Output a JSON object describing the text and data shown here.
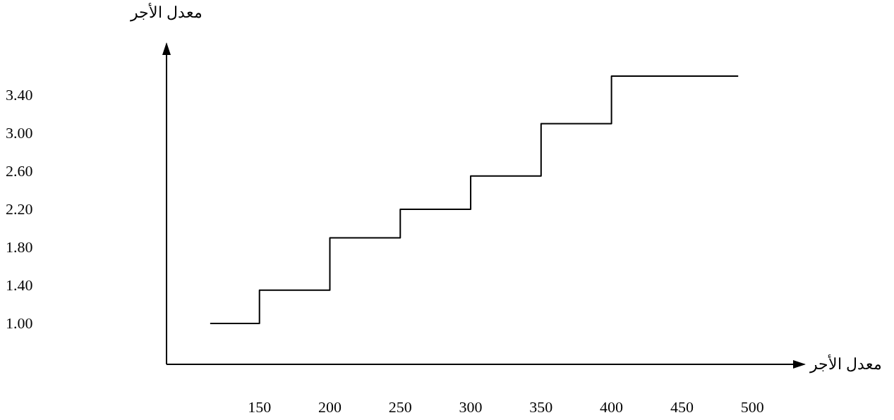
{
  "chart_data": {
    "type": "step",
    "xlabel": "معدل الأجر",
    "ylabel": "معدل الأجر",
    "x": [
      115,
      150,
      200,
      250,
      300,
      350,
      400,
      490
    ],
    "values": [
      1.0,
      1.35,
      1.9,
      2.2,
      2.55,
      3.1,
      3.6,
      3.6
    ],
    "color": "#000000",
    "xlim": [
      84,
      537
    ],
    "ylim": [
      0.57,
      3.94
    ],
    "xticks": [
      150,
      200,
      250,
      300,
      350,
      400,
      450,
      500
    ],
    "yticks": [
      {
        "value": 1.0,
        "label": "1.00"
      },
      {
        "value": 1.4,
        "label": "1.40"
      },
      {
        "value": 1.8,
        "label": "1.80"
      },
      {
        "value": 2.2,
        "label": "2.20"
      },
      {
        "value": 2.6,
        "label": "2.60"
      },
      {
        "value": 3.0,
        "label": "3.00"
      },
      {
        "value": 3.4,
        "label": "3.40"
      }
    ]
  }
}
